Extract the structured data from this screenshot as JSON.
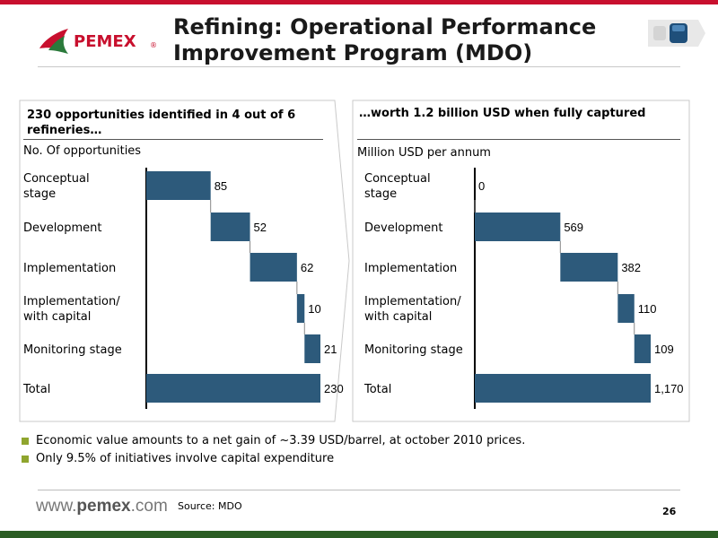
{
  "header": {
    "logo_text": "PEMEX",
    "logo_reg": "®",
    "title_line1": "Refining: Operational Performance",
    "title_line2": "Improvement Program (MDO)"
  },
  "left_panel": {
    "heading": "230 opportunities identified in 4 out of 6 refineries…",
    "subtitle": "No. Of opportunities"
  },
  "right_panel": {
    "heading": "…worth 1.2 billion USD when fully captured",
    "subtitle": "Million USD per annum"
  },
  "row_labels": [
    [
      "Conceptual",
      "stage"
    ],
    [
      "Development"
    ],
    [
      "Implementation"
    ],
    [
      "Implementation/",
      "with capital"
    ],
    [
      "Monitoring stage"
    ],
    [
      "Total"
    ]
  ],
  "chart_data": [
    {
      "type": "bar",
      "subtype": "waterfall",
      "orientation": "horizontal",
      "title": "230 opportunities identified in 4 out of 6 refineries…",
      "xlabel": "No. Of opportunities",
      "categories": [
        "Conceptual stage",
        "Development",
        "Implementation",
        "Implementation/ with capital",
        "Monitoring stage",
        "Total"
      ],
      "values": [
        85,
        52,
        62,
        10,
        21,
        230
      ],
      "value_labels": [
        "85",
        "52",
        "62",
        "10",
        "21",
        "230"
      ],
      "total_index": 5,
      "xlim": [
        0,
        230
      ],
      "bar_color": "#2d5a7b"
    },
    {
      "type": "bar",
      "subtype": "waterfall",
      "orientation": "horizontal",
      "title": "…worth 1.2 billion USD when fully captured",
      "xlabel": "Million USD per annum",
      "categories": [
        "Conceptual stage",
        "Development",
        "Implementation",
        "Implementation/ with capital",
        "Monitoring stage",
        "Total"
      ],
      "values": [
        0,
        569,
        382,
        110,
        109,
        1170
      ],
      "value_labels": [
        "0",
        "569",
        "382",
        "110",
        "109",
        "1,170"
      ],
      "total_index": 5,
      "xlim": [
        0,
        1170
      ],
      "bar_color": "#2d5a7b"
    }
  ],
  "bullets": [
    "Economic value amounts to a net gain of ~3.39 USD/barrel, at october 2010 prices.",
    "Only 9.5% of initiatives involve capital expenditure"
  ],
  "footer": {
    "url_prefix": "www.",
    "url_brand": "pemex",
    "url_suffix": ".com",
    "source": "Source: MDO",
    "page_number": "26"
  },
  "colors": {
    "brand_red": "#c8102e",
    "bar": "#2d5a7b",
    "bullet": "#8fa52e",
    "footer_green": "#2b5d24"
  }
}
